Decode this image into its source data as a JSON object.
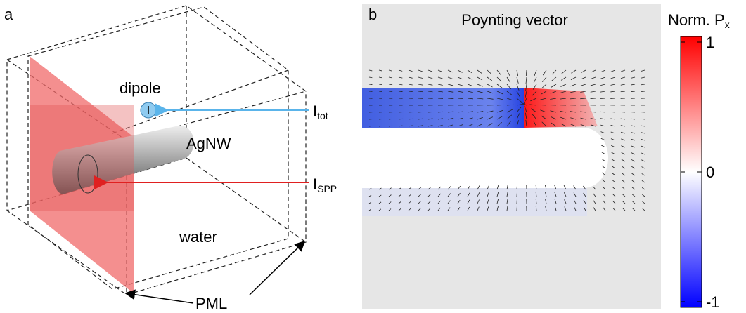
{
  "panel_a": {
    "label": "a",
    "dipole": "dipole",
    "wire": "AgNW",
    "medium": "water",
    "boundary": "PML",
    "i_tot": {
      "main": "I",
      "sub": "tot"
    },
    "i_spp": {
      "main": "I",
      "sub": "SPP"
    }
  },
  "panel_b": {
    "label": "b",
    "title": "Poynting vector"
  },
  "colorbar": {
    "title": "Norm. P",
    "title_sub": "x",
    "lim": [
      -1,
      1
    ],
    "ticks": [
      1,
      0,
      -1
    ]
  }
}
